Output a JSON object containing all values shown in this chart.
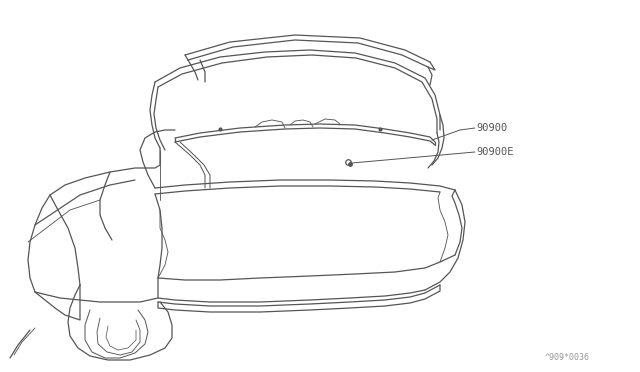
{
  "bg_color": "#ffffff",
  "line_color": "#555555",
  "label_color": "#555555",
  "lw": 0.9,
  "label_90900": "90900",
  "label_90900E": "90900E",
  "watermark": "^909*0036",
  "fig_width": 6.4,
  "fig_height": 3.72,
  "dpi": 100
}
